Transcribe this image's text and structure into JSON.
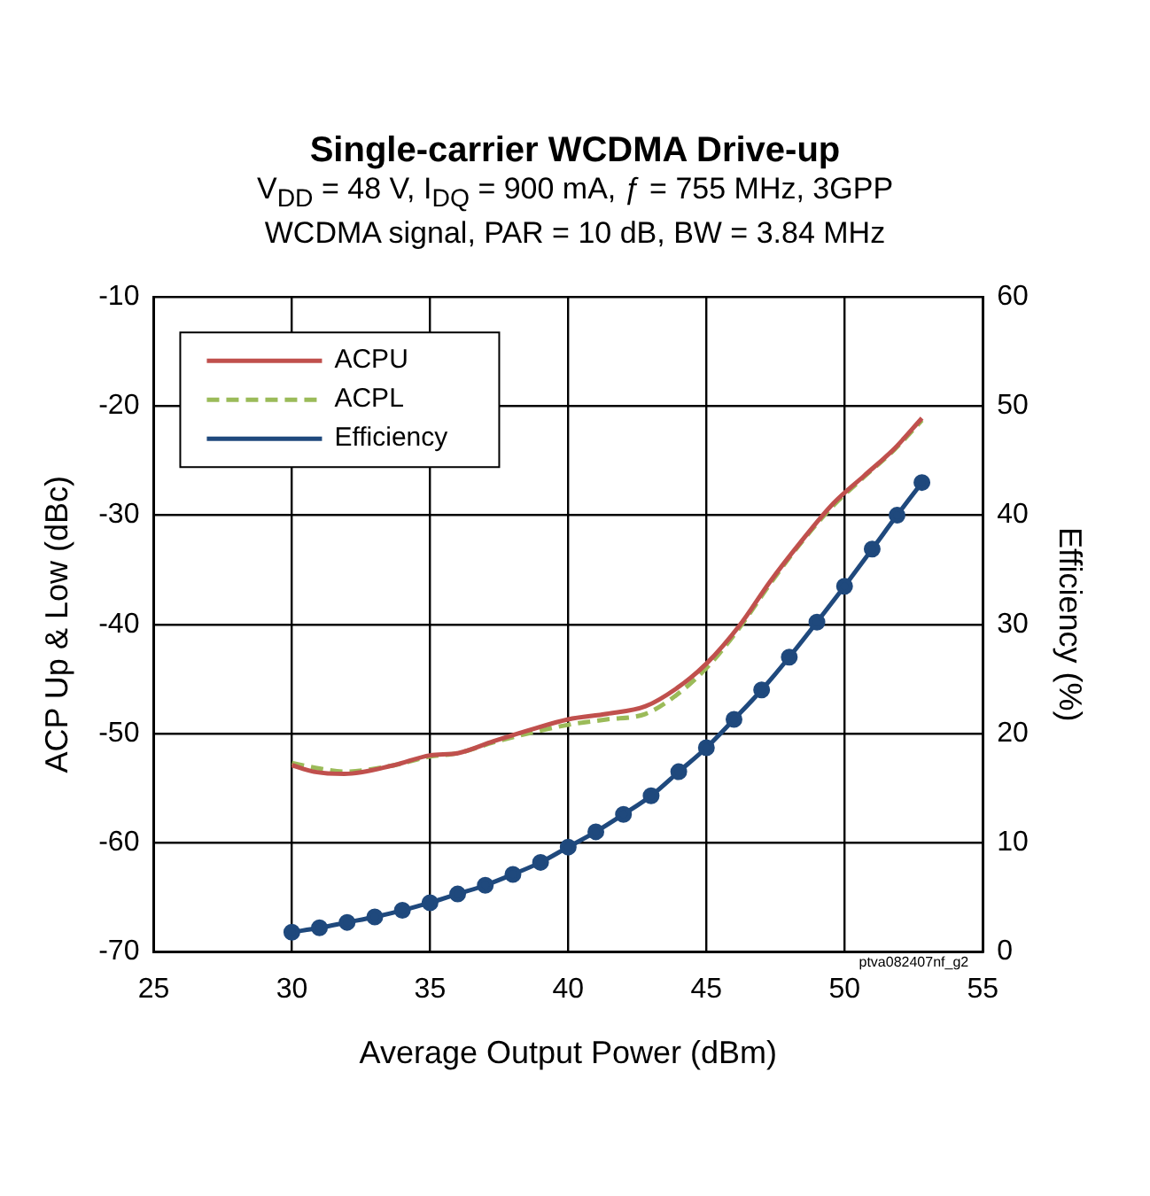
{
  "chart_data": {
    "type": "line",
    "title": "Single-carrier WCDMA Drive-up",
    "subtitle": "V$_{DD}$ = 48 V, I$_{DQ}$ = 900 mA, ƒ = 755 MHz, 3GPP WCDMA signal, PAR = 10 dB, BW = 3.84 MHz",
    "xlabel": "Average Output Power (dBm)",
    "ylabel": "ACP Up & Low (dBc)",
    "y2label": "Efficiency (%)",
    "xlim": [
      25,
      55
    ],
    "xticks": [
      25,
      30,
      35,
      40,
      45,
      50,
      55
    ],
    "ylim": [
      -70,
      -10
    ],
    "yticks": [
      -70,
      -60,
      -50,
      -40,
      -30,
      -20,
      -10
    ],
    "y2lim": [
      0,
      60
    ],
    "y2ticks": [
      0,
      10,
      20,
      30,
      40,
      50,
      60
    ],
    "grid": true,
    "legend": "top left",
    "annotations": [
      "ptva082407nf_g2"
    ],
    "series": [
      {
        "name": "ACPU",
        "color": "#c0504d",
        "marker": "none",
        "line_style": "solid",
        "x": [
          30,
          30.8,
          31.9,
          33.7,
          35,
          36,
          37.3,
          38.7,
          40,
          41.4,
          42.8,
          43.9,
          45,
          46.2,
          47.3,
          48.4,
          49.6,
          50.7,
          51.8,
          52.8
        ],
        "values": [
          -52.9,
          -53.5,
          -53.7,
          -52.9,
          -52.0,
          -51.8,
          -50.7,
          -49.6,
          -48.7,
          -48.2,
          -47.5,
          -45.9,
          -43.6,
          -40.1,
          -36.1,
          -32.5,
          -28.9,
          -26.4,
          -23.9,
          -21.1
        ]
      },
      {
        "name": "ACPL",
        "color": "#9bbb59",
        "marker": "none",
        "line_style": "dashed",
        "x": [
          30,
          31,
          31.9,
          33.7,
          35,
          36,
          37.3,
          38.7,
          40,
          41.4,
          42.8,
          43.9,
          45,
          46.2,
          47.3,
          48.4,
          49.6,
          50.7,
          51.8,
          52.8
        ],
        "values": [
          -52.7,
          -53.2,
          -53.5,
          -52.9,
          -52.1,
          -51.8,
          -50.8,
          -49.9,
          -49.2,
          -48.7,
          -48.2,
          -46.5,
          -44.0,
          -40.3,
          -36.3,
          -32.6,
          -29.1,
          -26.5,
          -24.0,
          -21.3
        ]
      },
      {
        "name": "Efficiency",
        "color": "#1f497d",
        "marker": "circle",
        "line_style": "solid",
        "axis": "y2",
        "x": [
          30,
          31,
          32,
          33,
          34,
          35,
          36,
          37,
          38,
          39,
          40,
          41,
          42,
          43,
          44,
          45,
          46,
          47,
          48,
          49,
          50,
          51,
          51.9,
          52.8
        ],
        "values": [
          1.8,
          2.2,
          2.7,
          3.2,
          3.8,
          4.5,
          5.3,
          6.1,
          7.1,
          8.2,
          9.6,
          11.0,
          12.6,
          14.3,
          16.5,
          18.7,
          21.3,
          24.0,
          27.0,
          30.2,
          33.5,
          36.9,
          40.0,
          43.0
        ]
      }
    ]
  }
}
